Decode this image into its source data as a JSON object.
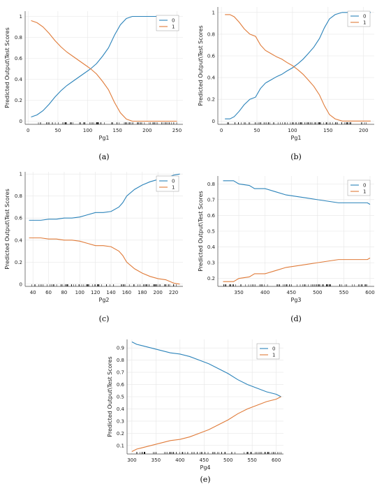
{
  "colors": {
    "series0": "#2b83ba",
    "series1": "#e07b39",
    "grid": "#e6e6e6",
    "axis": "#444444",
    "rug": "#000000"
  },
  "chart_data": [
    {
      "id": "a",
      "caption": "(a)",
      "type": "line",
      "xlabel": "Pg1",
      "ylabel": "Predicted Output\\Test Scores",
      "xlim": [
        -5,
        260
      ],
      "ylim": [
        -0.03,
        1.05
      ],
      "xticks": [
        0,
        50,
        100,
        150,
        200,
        250
      ],
      "yticks": [
        0,
        0.2,
        0.4,
        0.6,
        0.8,
        1
      ],
      "ytick_labels": [
        "0",
        "0.2",
        "0.4",
        "0.6",
        "0.8",
        "1"
      ],
      "legend": [
        "0",
        "1"
      ],
      "series": [
        {
          "name": "0",
          "x": [
            5,
            15,
            25,
            35,
            45,
            55,
            65,
            75,
            85,
            95,
            105,
            115,
            125,
            135,
            145,
            155,
            165,
            175,
            185,
            200,
            225,
            250
          ],
          "y": [
            0.04,
            0.06,
            0.1,
            0.16,
            0.23,
            0.29,
            0.34,
            0.38,
            0.42,
            0.46,
            0.5,
            0.55,
            0.62,
            0.7,
            0.82,
            0.92,
            0.98,
            1.0,
            1.0,
            1.0,
            1.0,
            1.0
          ]
        },
        {
          "name": "1",
          "x": [
            5,
            15,
            25,
            35,
            45,
            55,
            65,
            75,
            85,
            95,
            105,
            115,
            125,
            135,
            145,
            155,
            165,
            175,
            185,
            200,
            225,
            250
          ],
          "y": [
            0.96,
            0.94,
            0.9,
            0.84,
            0.77,
            0.71,
            0.66,
            0.62,
            0.58,
            0.54,
            0.5,
            0.45,
            0.38,
            0.3,
            0.18,
            0.08,
            0.02,
            0.0,
            0.0,
            0.0,
            0.0,
            0.0
          ]
        }
      ]
    },
    {
      "id": "b",
      "caption": "(b)",
      "type": "line",
      "xlabel": "Pg1",
      "ylabel": "Predicted Output\\Test Scores",
      "xlim": [
        -5,
        215
      ],
      "ylim": [
        -0.03,
        1.05
      ],
      "xticks": [
        0,
        50,
        100,
        150,
        200
      ],
      "yticks": [
        0,
        0.2,
        0.4,
        0.6,
        0.8,
        1
      ],
      "ytick_labels": [
        "0",
        "0.2",
        "0.4",
        "0.6",
        "0.8",
        "1"
      ],
      "legend": [
        "0",
        "1"
      ],
      "series": [
        {
          "name": "0",
          "x": [
            5,
            12,
            18,
            25,
            32,
            40,
            48,
            55,
            62,
            70,
            78,
            85,
            92,
            100,
            108,
            115,
            122,
            130,
            138,
            145,
            152,
            160,
            170,
            185,
            200,
            210
          ],
          "y": [
            0.02,
            0.02,
            0.04,
            0.09,
            0.15,
            0.2,
            0.22,
            0.3,
            0.35,
            0.38,
            0.41,
            0.43,
            0.46,
            0.49,
            0.53,
            0.57,
            0.62,
            0.68,
            0.76,
            0.86,
            0.94,
            0.98,
            1.0,
            1.0,
            1.0,
            1.0
          ]
        },
        {
          "name": "1",
          "x": [
            5,
            12,
            18,
            25,
            32,
            40,
            48,
            55,
            62,
            70,
            78,
            85,
            92,
            100,
            108,
            115,
            122,
            130,
            138,
            145,
            152,
            160,
            170,
            185,
            200,
            210
          ],
          "y": [
            0.98,
            0.98,
            0.96,
            0.91,
            0.85,
            0.8,
            0.78,
            0.7,
            0.65,
            0.62,
            0.59,
            0.57,
            0.54,
            0.51,
            0.47,
            0.43,
            0.38,
            0.32,
            0.24,
            0.14,
            0.06,
            0.02,
            0.0,
            0.0,
            0.0,
            0.0
          ]
        }
      ]
    },
    {
      "id": "c",
      "caption": "(c)",
      "type": "line",
      "xlabel": "Pg2",
      "ylabel": "Predicted Output\\Test Scores",
      "xlim": [
        30,
        232
      ],
      "ylim": [
        -0.02,
        1.02
      ],
      "xticks": [
        40,
        60,
        80,
        100,
        120,
        140,
        160,
        180,
        200,
        220
      ],
      "yticks": [
        0,
        0.2,
        0.4,
        0.6,
        0.8,
        1
      ],
      "ytick_labels": [
        "0",
        "0.2",
        "0.4",
        "0.6",
        "0.8",
        "1"
      ],
      "legend": [
        "0",
        "1"
      ],
      "series": [
        {
          "name": "0",
          "x": [
            35,
            50,
            60,
            70,
            80,
            90,
            100,
            110,
            120,
            130,
            140,
            150,
            155,
            160,
            170,
            180,
            190,
            200,
            210,
            220,
            228
          ],
          "y": [
            0.58,
            0.58,
            0.59,
            0.59,
            0.6,
            0.6,
            0.61,
            0.63,
            0.65,
            0.65,
            0.66,
            0.7,
            0.74,
            0.8,
            0.86,
            0.9,
            0.93,
            0.95,
            0.96,
            0.99,
            1.0
          ]
        },
        {
          "name": "1",
          "x": [
            35,
            50,
            60,
            70,
            80,
            90,
            100,
            110,
            120,
            130,
            140,
            150,
            155,
            160,
            170,
            180,
            190,
            200,
            210,
            220,
            228
          ],
          "y": [
            0.42,
            0.42,
            0.41,
            0.41,
            0.4,
            0.4,
            0.39,
            0.37,
            0.35,
            0.35,
            0.34,
            0.3,
            0.26,
            0.2,
            0.14,
            0.1,
            0.07,
            0.05,
            0.04,
            0.01,
            0.0
          ]
        }
      ]
    },
    {
      "id": "d",
      "caption": "(d)",
      "type": "line",
      "xlabel": "Pg3",
      "ylabel": "Predicted Output\\Test Scores",
      "xlim": [
        310,
        608
      ],
      "ylim": [
        0.15,
        0.85
      ],
      "xticks": [
        350,
        400,
        450,
        500,
        550,
        600
      ],
      "yticks": [
        0.2,
        0.3,
        0.4,
        0.5,
        0.6,
        0.7,
        0.8
      ],
      "ytick_labels": [
        "0.2",
        "0.3",
        "0.4",
        "0.5",
        "0.6",
        "0.7",
        "0.8"
      ],
      "legend": [
        "0",
        "1"
      ],
      "series": [
        {
          "name": "0",
          "x": [
            320,
            340,
            350,
            370,
            380,
            400,
            420,
            440,
            460,
            480,
            500,
            520,
            540,
            560,
            580,
            595,
            600
          ],
          "y": [
            0.82,
            0.82,
            0.8,
            0.79,
            0.77,
            0.77,
            0.75,
            0.73,
            0.72,
            0.71,
            0.7,
            0.69,
            0.68,
            0.68,
            0.68,
            0.68,
            0.67
          ]
        },
        {
          "name": "1",
          "x": [
            320,
            340,
            350,
            370,
            380,
            400,
            420,
            440,
            460,
            480,
            500,
            520,
            540,
            560,
            580,
            595,
            600
          ],
          "y": [
            0.18,
            0.18,
            0.2,
            0.21,
            0.23,
            0.23,
            0.25,
            0.27,
            0.28,
            0.29,
            0.3,
            0.31,
            0.32,
            0.32,
            0.32,
            0.32,
            0.33
          ]
        }
      ]
    },
    {
      "id": "e",
      "caption": "(e)",
      "type": "line",
      "xlabel": "Pg4",
      "ylabel": "Predicted Output\\Test Scores",
      "xlim": [
        290,
        615
      ],
      "ylim": [
        0.03,
        0.97
      ],
      "xticks": [
        300,
        350,
        400,
        450,
        500,
        550,
        600
      ],
      "yticks": [
        0.1,
        0.2,
        0.3,
        0.4,
        0.5,
        0.6,
        0.7,
        0.8,
        0.9
      ],
      "ytick_labels": [
        "0.1",
        "0.2",
        "0.3",
        "0.4",
        "0.5",
        "0.6",
        "0.7",
        "0.8",
        "0.9"
      ],
      "legend": [
        "0",
        "1"
      ],
      "series": [
        {
          "name": "0",
          "x": [
            300,
            310,
            320,
            340,
            360,
            380,
            400,
            420,
            440,
            460,
            480,
            500,
            520,
            540,
            560,
            580,
            600,
            610
          ],
          "y": [
            0.95,
            0.93,
            0.92,
            0.9,
            0.88,
            0.86,
            0.85,
            0.83,
            0.8,
            0.77,
            0.73,
            0.69,
            0.64,
            0.6,
            0.57,
            0.54,
            0.52,
            0.5
          ]
        },
        {
          "name": "1",
          "x": [
            300,
            310,
            320,
            340,
            360,
            380,
            400,
            420,
            440,
            460,
            480,
            500,
            520,
            540,
            560,
            580,
            600,
            610
          ],
          "y": [
            0.05,
            0.07,
            0.08,
            0.1,
            0.12,
            0.14,
            0.15,
            0.17,
            0.2,
            0.23,
            0.27,
            0.31,
            0.36,
            0.4,
            0.43,
            0.46,
            0.48,
            0.5
          ]
        }
      ]
    }
  ]
}
